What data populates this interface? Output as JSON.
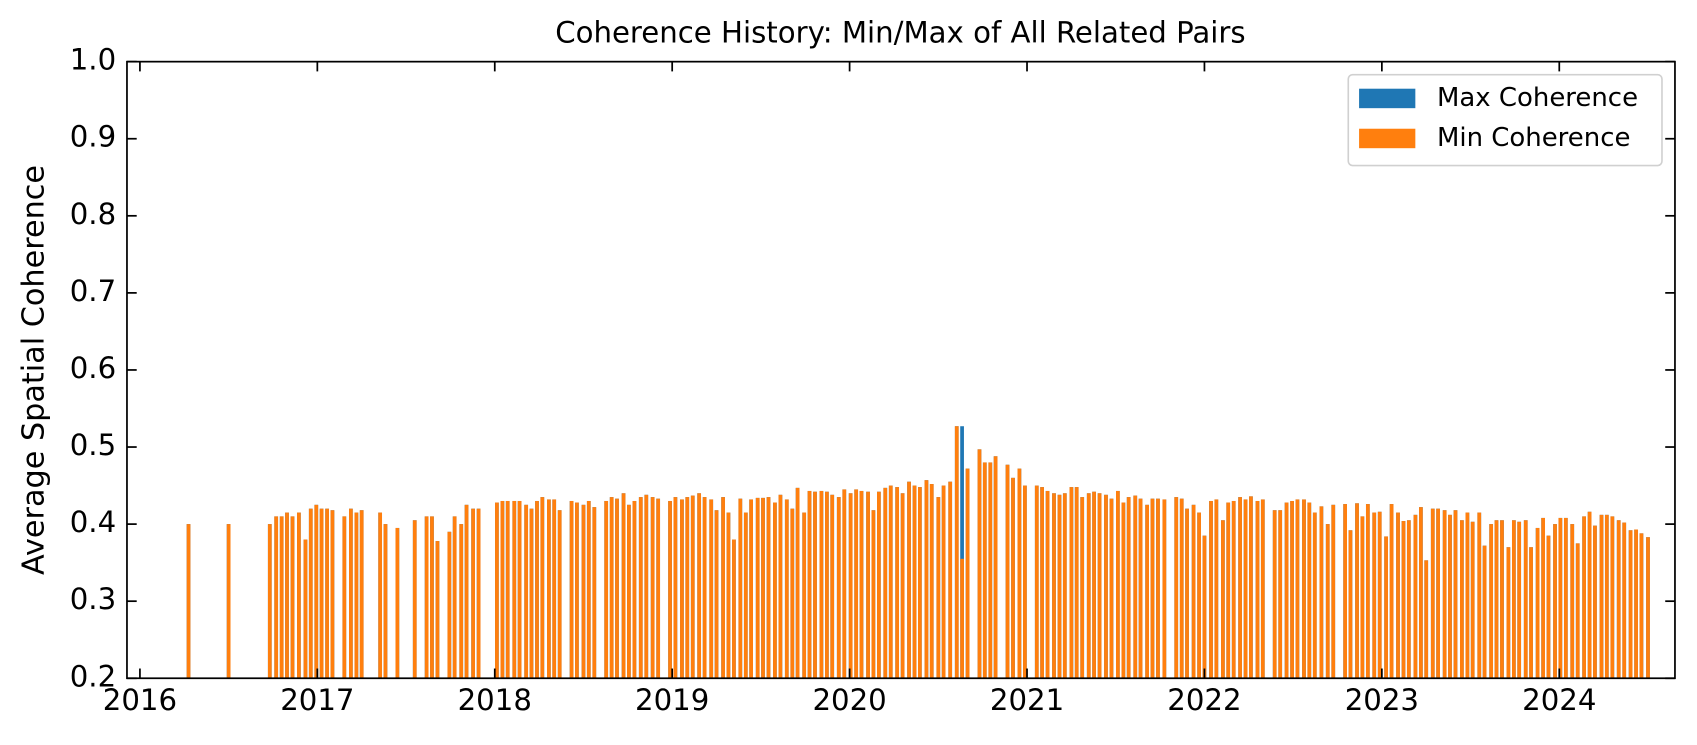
{
  "chart_data": {
    "type": "bar",
    "title": "Coherence History: Min/Max of All Related Pairs",
    "y_label": "Average Spatial Coherence",
    "x": [
      2016.274,
      2016.5,
      2016.732,
      2016.768,
      2016.799,
      2016.829,
      2016.86,
      2016.896,
      2016.933,
      2016.963,
      2016.994,
      2017.024,
      2017.055,
      2017.085,
      2017.152,
      2017.189,
      2017.22,
      2017.25,
      2017.354,
      2017.384,
      2017.451,
      2017.549,
      2017.616,
      2017.646,
      2017.677,
      2017.744,
      2017.774,
      2017.811,
      2017.841,
      2017.878,
      2017.909,
      2018.012,
      2018.043,
      2018.073,
      2018.11,
      2018.14,
      2018.177,
      2018.207,
      2018.238,
      2018.268,
      2018.305,
      2018.335,
      2018.366,
      2018.433,
      2018.463,
      2018.5,
      2018.53,
      2018.561,
      2018.628,
      2018.659,
      2018.689,
      2018.726,
      2018.756,
      2018.787,
      2018.823,
      2018.854,
      2018.89,
      2018.921,
      2018.988,
      2019.018,
      2019.055,
      2019.085,
      2019.116,
      2019.152,
      2019.183,
      2019.22,
      2019.25,
      2019.287,
      2019.317,
      2019.348,
      2019.384,
      2019.415,
      2019.445,
      2019.482,
      2019.512,
      2019.543,
      2019.579,
      2019.61,
      2019.646,
      2019.677,
      2019.707,
      2019.744,
      2019.774,
      2019.805,
      2019.841,
      2019.872,
      2019.902,
      2019.939,
      2019.97,
      2020.006,
      2020.037,
      2020.067,
      2020.104,
      2020.134,
      2020.165,
      2020.201,
      2020.232,
      2020.268,
      2020.299,
      2020.335,
      2020.366,
      2020.396,
      2020.433,
      2020.463,
      2020.5,
      2020.53,
      2020.567,
      2020.604,
      2020.634,
      2020.665,
      2020.732,
      2020.762,
      2020.793,
      2020.823,
      2020.89,
      2020.921,
      2020.957,
      2020.988,
      2021.055,
      2021.085,
      2021.116,
      2021.152,
      2021.183,
      2021.213,
      2021.25,
      2021.28,
      2021.311,
      2021.348,
      2021.378,
      2021.409,
      2021.445,
      2021.476,
      2021.512,
      2021.543,
      2021.573,
      2021.61,
      2021.64,
      2021.677,
      2021.707,
      2021.738,
      2021.774,
      2021.841,
      2021.872,
      2021.902,
      2021.939,
      2021.97,
      2022.0,
      2022.037,
      2022.067,
      2022.104,
      2022.134,
      2022.165,
      2022.201,
      2022.232,
      2022.262,
      2022.299,
      2022.329,
      2022.396,
      2022.427,
      2022.463,
      2022.494,
      2022.524,
      2022.561,
      2022.591,
      2022.622,
      2022.659,
      2022.695,
      2022.726,
      2022.793,
      2022.823,
      2022.86,
      2022.89,
      2022.921,
      2022.957,
      2022.988,
      2023.024,
      2023.055,
      2023.091,
      2023.122,
      2023.152,
      2023.189,
      2023.22,
      2023.25,
      2023.287,
      2023.317,
      2023.354,
      2023.384,
      2023.415,
      2023.451,
      2023.482,
      2023.512,
      2023.549,
      2023.579,
      2023.616,
      2023.646,
      2023.677,
      2023.713,
      2023.744,
      2023.774,
      2023.811,
      2023.841,
      2023.878,
      2023.909,
      2023.939,
      2023.976,
      2024.006,
      2024.037,
      2024.073,
      2024.104,
      2024.14,
      2024.171,
      2024.201,
      2024.238,
      2024.268,
      2024.299,
      2024.335,
      2024.366,
      2024.402,
      2024.433,
      2024.463,
      2024.5
    ],
    "series": [
      {
        "name": "Max Coherence",
        "color": "#1f77b4",
        "values": [
          0.4,
          0.4,
          0.4,
          0.41,
          0.41,
          0.415,
          0.41,
          0.415,
          0.38,
          0.42,
          0.425,
          0.42,
          0.42,
          0.418,
          0.41,
          0.42,
          0.415,
          0.418,
          0.415,
          0.4,
          0.395,
          0.405,
          0.41,
          0.41,
          0.378,
          0.39,
          0.41,
          0.4,
          0.425,
          0.42,
          0.42,
          0.428,
          0.43,
          0.43,
          0.43,
          0.43,
          0.425,
          0.42,
          0.43,
          0.435,
          0.432,
          0.432,
          0.418,
          0.43,
          0.428,
          0.425,
          0.43,
          0.422,
          0.43,
          0.435,
          0.433,
          0.44,
          0.425,
          0.43,
          0.435,
          0.438,
          0.435,
          0.433,
          0.43,
          0.435,
          0.432,
          0.435,
          0.437,
          0.44,
          0.435,
          0.432,
          0.418,
          0.435,
          0.415,
          0.38,
          0.433,
          0.415,
          0.432,
          0.434,
          0.434,
          0.435,
          0.428,
          0.438,
          0.432,
          0.42,
          0.447,
          0.415,
          0.443,
          0.442,
          0.443,
          0.442,
          0.438,
          0.435,
          0.445,
          0.44,
          0.445,
          0.443,
          0.442,
          0.418,
          0.442,
          0.447,
          0.45,
          0.448,
          0.44,
          0.455,
          0.45,
          0.448,
          0.457,
          0.452,
          0.435,
          0.45,
          0.455,
          0.527,
          0.527,
          0.472,
          0.497,
          0.48,
          0.48,
          0.488,
          0.477,
          0.46,
          0.472,
          0.45,
          0.45,
          0.448,
          0.443,
          0.44,
          0.438,
          0.44,
          0.448,
          0.448,
          0.435,
          0.44,
          0.442,
          0.44,
          0.438,
          0.433,
          0.443,
          0.428,
          0.435,
          0.437,
          0.433,
          0.425,
          0.433,
          0.433,
          0.432,
          0.435,
          0.433,
          0.42,
          0.425,
          0.415,
          0.385,
          0.43,
          0.432,
          0.405,
          0.428,
          0.43,
          0.435,
          0.432,
          0.436,
          0.43,
          0.432,
          0.418,
          0.418,
          0.428,
          0.43,
          0.432,
          0.432,
          0.428,
          0.415,
          0.423,
          0.4,
          0.425,
          0.426,
          0.392,
          0.427,
          0.41,
          0.426,
          0.415,
          0.416,
          0.384,
          0.426,
          0.415,
          0.404,
          0.405,
          0.412,
          0.422,
          0.353,
          0.42,
          0.42,
          0.418,
          0.412,
          0.418,
          0.405,
          0.415,
          0.403,
          0.415,
          0.372,
          0.4,
          0.405,
          0.405,
          0.37,
          0.405,
          0.403,
          0.405,
          0.37,
          0.395,
          0.408,
          0.385,
          0.4,
          0.408,
          0.408,
          0.4,
          0.375,
          0.41,
          0.416,
          0.398,
          0.412,
          0.412,
          0.41,
          0.405,
          0.402,
          0.392,
          0.393,
          0.388,
          0.383
        ]
      },
      {
        "name": "Min Coherence",
        "color": "#ff7f0e",
        "values": [
          0.4,
          0.4,
          0.4,
          0.41,
          0.41,
          0.415,
          0.41,
          0.415,
          0.38,
          0.42,
          0.425,
          0.42,
          0.42,
          0.418,
          0.41,
          0.42,
          0.415,
          0.418,
          0.415,
          0.4,
          0.395,
          0.405,
          0.41,
          0.41,
          0.378,
          0.39,
          0.41,
          0.4,
          0.425,
          0.42,
          0.42,
          0.428,
          0.43,
          0.43,
          0.43,
          0.43,
          0.425,
          0.42,
          0.43,
          0.435,
          0.432,
          0.432,
          0.418,
          0.43,
          0.428,
          0.425,
          0.43,
          0.422,
          0.43,
          0.435,
          0.433,
          0.44,
          0.425,
          0.43,
          0.435,
          0.438,
          0.435,
          0.433,
          0.43,
          0.435,
          0.432,
          0.435,
          0.437,
          0.44,
          0.435,
          0.432,
          0.418,
          0.435,
          0.415,
          0.38,
          0.433,
          0.415,
          0.432,
          0.434,
          0.434,
          0.435,
          0.428,
          0.438,
          0.432,
          0.42,
          0.447,
          0.415,
          0.443,
          0.442,
          0.443,
          0.442,
          0.438,
          0.435,
          0.445,
          0.44,
          0.445,
          0.443,
          0.442,
          0.418,
          0.442,
          0.447,
          0.45,
          0.448,
          0.44,
          0.455,
          0.45,
          0.448,
          0.457,
          0.452,
          0.435,
          0.45,
          0.455,
          0.527,
          0.355,
          0.472,
          0.497,
          0.48,
          0.48,
          0.488,
          0.477,
          0.46,
          0.472,
          0.45,
          0.45,
          0.448,
          0.443,
          0.44,
          0.438,
          0.44,
          0.448,
          0.448,
          0.435,
          0.44,
          0.442,
          0.44,
          0.438,
          0.433,
          0.443,
          0.428,
          0.435,
          0.437,
          0.433,
          0.425,
          0.433,
          0.433,
          0.432,
          0.435,
          0.433,
          0.42,
          0.425,
          0.415,
          0.385,
          0.43,
          0.432,
          0.405,
          0.428,
          0.43,
          0.435,
          0.432,
          0.436,
          0.43,
          0.432,
          0.418,
          0.418,
          0.428,
          0.43,
          0.432,
          0.432,
          0.428,
          0.415,
          0.423,
          0.4,
          0.425,
          0.426,
          0.392,
          0.427,
          0.41,
          0.426,
          0.415,
          0.416,
          0.384,
          0.426,
          0.415,
          0.404,
          0.405,
          0.412,
          0.422,
          0.353,
          0.42,
          0.42,
          0.418,
          0.412,
          0.418,
          0.405,
          0.415,
          0.403,
          0.415,
          0.372,
          0.4,
          0.405,
          0.405,
          0.37,
          0.405,
          0.403,
          0.405,
          0.37,
          0.395,
          0.408,
          0.385,
          0.4,
          0.408,
          0.408,
          0.4,
          0.375,
          0.41,
          0.416,
          0.398,
          0.412,
          0.412,
          0.41,
          0.405,
          0.402,
          0.392,
          0.393,
          0.388,
          0.383
        ]
      }
    ],
    "xlim": [
      2015.927,
      2024.652
    ],
    "xticks": [
      2016,
      2017,
      2018,
      2019,
      2020,
      2021,
      2022,
      2023,
      2024
    ],
    "ylim": [
      0.2,
      1.0
    ],
    "yticks": [
      {
        "value": 0.2,
        "label": "0.2"
      },
      0.3,
      0.4,
      0.5,
      0.6,
      0.7,
      0.8,
      0.9,
      {
        "value": 1.0,
        "label": "1.0"
      }
    ],
    "legend": "upper right"
  }
}
